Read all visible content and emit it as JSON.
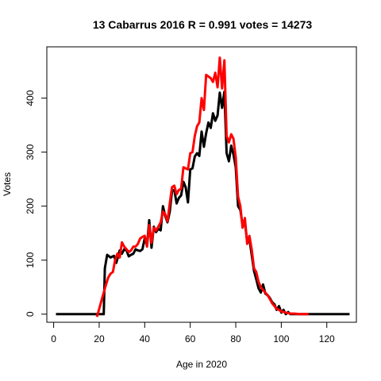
{
  "chart_data": {
    "type": "line",
    "title": "13 Cabarrus 2016 R = 0.991 votes = 14273",
    "xlabel": "Age in 2020",
    "ylabel": "Votes",
    "xlim": [
      -3,
      133
    ],
    "ylim": [
      -15,
      495
    ],
    "x_ticks": [
      0,
      20,
      40,
      60,
      80,
      100,
      120
    ],
    "y_ticks": [
      0,
      100,
      200,
      300,
      400
    ],
    "grid": false,
    "legend": "none",
    "series": [
      {
        "color": "#000000",
        "points": [
          [
            1,
            0
          ],
          [
            5,
            0
          ],
          [
            10,
            0
          ],
          [
            15,
            0
          ],
          [
            20,
            0
          ],
          [
            22,
            0
          ],
          [
            22.5,
            85
          ],
          [
            23.5,
            110
          ],
          [
            25,
            105
          ],
          [
            26.5,
            108
          ],
          [
            27.5,
            95
          ],
          [
            29,
            118
          ],
          [
            30,
            112
          ],
          [
            31,
            120
          ],
          [
            32,
            118
          ],
          [
            33,
            107
          ],
          [
            34,
            110
          ],
          [
            35,
            112
          ],
          [
            36,
            120
          ],
          [
            37,
            118
          ],
          [
            38,
            117
          ],
          [
            39,
            120
          ],
          [
            40,
            140
          ],
          [
            41,
            128
          ],
          [
            42,
            174
          ],
          [
            43,
            123
          ],
          [
            44,
            162
          ],
          [
            45,
            152
          ],
          [
            46,
            158
          ],
          [
            47,
            155
          ],
          [
            48,
            200
          ],
          [
            49,
            182
          ],
          [
            50,
            170
          ],
          [
            51,
            190
          ],
          [
            52,
            228
          ],
          [
            53,
            230
          ],
          [
            54,
            205
          ],
          [
            55,
            215
          ],
          [
            56,
            220
          ],
          [
            57,
            245
          ],
          [
            58,
            235
          ],
          [
            59,
            207
          ],
          [
            60,
            268
          ],
          [
            61,
            270
          ],
          [
            62,
            292
          ],
          [
            63,
            298
          ],
          [
            64,
            293
          ],
          [
            65,
            338
          ],
          [
            66,
            310
          ],
          [
            67,
            335
          ],
          [
            68,
            355
          ],
          [
            69,
            345
          ],
          [
            70,
            372
          ],
          [
            71,
            358
          ],
          [
            72,
            368
          ],
          [
            73,
            410
          ],
          [
            74,
            382
          ],
          [
            75,
            412
          ],
          [
            76,
            298
          ],
          [
            77,
            283
          ],
          [
            78,
            312
          ],
          [
            79,
            296
          ],
          [
            80,
            272
          ],
          [
            81,
            200
          ],
          [
            82,
            193
          ],
          [
            83,
            165
          ],
          [
            84,
            170
          ],
          [
            85,
            135
          ],
          [
            86,
            140
          ],
          [
            87,
            110
          ],
          [
            88,
            80
          ],
          [
            89,
            65
          ],
          [
            90,
            48
          ],
          [
            91,
            40
          ],
          [
            92,
            55
          ],
          [
            93,
            38
          ],
          [
            94,
            35
          ],
          [
            95,
            30
          ],
          [
            96,
            22
          ],
          [
            97,
            18
          ],
          [
            98,
            8
          ],
          [
            99,
            15
          ],
          [
            100,
            3
          ],
          [
            101,
            8
          ],
          [
            102,
            0
          ],
          [
            103,
            4
          ],
          [
            104,
            0
          ],
          [
            106,
            0
          ],
          [
            110,
            0
          ],
          [
            120,
            0
          ],
          [
            125,
            0
          ],
          [
            130,
            0
          ]
        ]
      },
      {
        "color": "#ff0000",
        "points": [
          [
            19,
            -5
          ],
          [
            20,
            10
          ],
          [
            21,
            25
          ],
          [
            22,
            40
          ],
          [
            23,
            55
          ],
          [
            24,
            68
          ],
          [
            25,
            75
          ],
          [
            26,
            78
          ],
          [
            27,
            100
          ],
          [
            28,
            112
          ],
          [
            29,
            105
          ],
          [
            30,
            133
          ],
          [
            31,
            125
          ],
          [
            32,
            120
          ],
          [
            33,
            115
          ],
          [
            34,
            118
          ],
          [
            35,
            125
          ],
          [
            36,
            125
          ],
          [
            37,
            130
          ],
          [
            38,
            140
          ],
          [
            39,
            143
          ],
          [
            40,
            145
          ],
          [
            41,
            125
          ],
          [
            42,
            165
          ],
          [
            43,
            132
          ],
          [
            44,
            160
          ],
          [
            45,
            155
          ],
          [
            46,
            162
          ],
          [
            47,
            170
          ],
          [
            48,
            190
          ],
          [
            49,
            185
          ],
          [
            50,
            172
          ],
          [
            51,
            205
          ],
          [
            52,
            235
          ],
          [
            53,
            238
          ],
          [
            54,
            222
          ],
          [
            55,
            230
          ],
          [
            56,
            232
          ],
          [
            57,
            272
          ],
          [
            58,
            270
          ],
          [
            59,
            268
          ],
          [
            60,
            298
          ],
          [
            61,
            300
          ],
          [
            62,
            330
          ],
          [
            63,
            348
          ],
          [
            64,
            355
          ],
          [
            65,
            400
          ],
          [
            66,
            378
          ],
          [
            67,
            443
          ],
          [
            68,
            440
          ],
          [
            69,
            437
          ],
          [
            70,
            430
          ],
          [
            71,
            447
          ],
          [
            72,
            420
          ],
          [
            73,
            475
          ],
          [
            74,
            418
          ],
          [
            75,
            470
          ],
          [
            76,
            330
          ],
          [
            77,
            318
          ],
          [
            78,
            333
          ],
          [
            79,
            325
          ],
          [
            80,
            290
          ],
          [
            81,
            218
          ],
          [
            82,
            200
          ],
          [
            83,
            160
          ],
          [
            84,
            178
          ],
          [
            85,
            130
          ],
          [
            86,
            145
          ],
          [
            87,
            120
          ],
          [
            88,
            85
          ],
          [
            89,
            78
          ],
          [
            90,
            60
          ],
          [
            91,
            50
          ],
          [
            92,
            45
          ],
          [
            93,
            40
          ],
          [
            94,
            35
          ],
          [
            95,
            28
          ],
          [
            96,
            20
          ],
          [
            97,
            15
          ],
          [
            98,
            10
          ],
          [
            99,
            8
          ],
          [
            100,
            5
          ],
          [
            101,
            4
          ],
          [
            102,
            3
          ],
          [
            103,
            2
          ],
          [
            104,
            1
          ],
          [
            106,
            1
          ],
          [
            108,
            0
          ],
          [
            110,
            0
          ],
          [
            112,
            0
          ]
        ]
      }
    ]
  }
}
